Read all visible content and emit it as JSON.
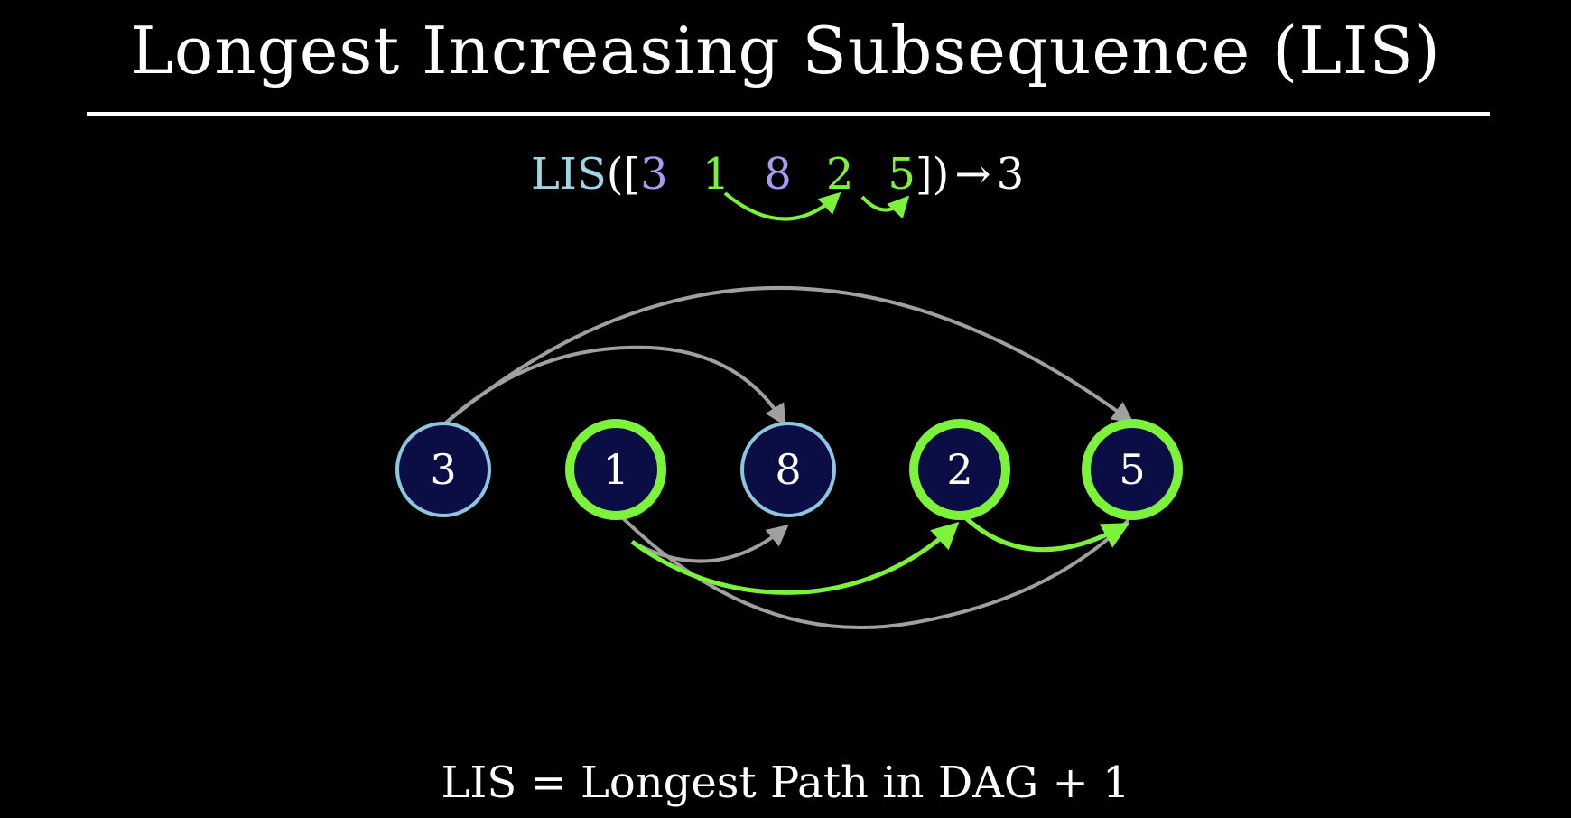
{
  "title": "Longest Increasing Subsequence (LIS)",
  "formula": {
    "prefix": "LIS",
    "open": "([",
    "sequence": [
      {
        "value": "3",
        "color": "#a99cf0"
      },
      {
        "value": "1",
        "color": "#7cf23a"
      },
      {
        "value": "8",
        "color": "#a99cf0"
      },
      {
        "value": "2",
        "color": "#7cf23a"
      },
      {
        "value": "5",
        "color": "#7cf23a"
      }
    ],
    "close": "])",
    "arrow": "→",
    "result": "3"
  },
  "nodes": [
    {
      "label": "3",
      "highlight": false
    },
    {
      "label": "1",
      "highlight": true
    },
    {
      "label": "8",
      "highlight": false
    },
    {
      "label": "2",
      "highlight": true
    },
    {
      "label": "5",
      "highlight": true
    }
  ],
  "edges": [
    {
      "from": "3",
      "to": "8",
      "highlight": false
    },
    {
      "from": "3",
      "to": "5",
      "highlight": false
    },
    {
      "from": "1",
      "to": "8",
      "highlight": false
    },
    {
      "from": "1",
      "to": "2",
      "highlight": true
    },
    {
      "from": "1",
      "to": "5",
      "highlight": false
    },
    {
      "from": "2",
      "to": "5",
      "highlight": true
    }
  ],
  "footer": "LIS = Longest Path in DAG + 1",
  "colors": {
    "background": "#000000",
    "node_fill": "#0b0d45",
    "node_border": "#8ec6e0",
    "highlight": "#7cf23a",
    "edge": "#a0a0a0",
    "prefix": "#9fd6e6",
    "text": "#ffffff"
  }
}
